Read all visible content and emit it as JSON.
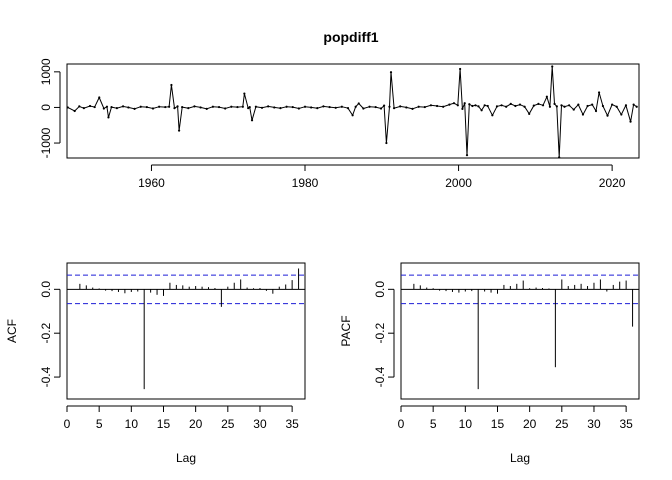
{
  "chart_data": [
    {
      "type": "line",
      "title": "popdiff1",
      "xlabel": "",
      "ylabel": "",
      "xlim": [
        1949,
        2023.5
      ],
      "ylim": [
        -1420,
        1220
      ],
      "x_ticks": [
        1960,
        1980,
        2000,
        2020
      ],
      "x_tick_labels": [
        "1960",
        "1980",
        "2000",
        "2020"
      ],
      "y_ticks": [
        -1000,
        0,
        1000
      ],
      "y_tick_labels": [
        "-1000",
        "0",
        "1000"
      ],
      "series": [
        {
          "x": [
            1949.1,
            1950.0,
            1950.6,
            1951.2,
            1952.0,
            1952.6,
            1953.2,
            1953.8,
            1954.2,
            1954.4,
            1954.8,
            1955.5,
            1956.3,
            1957.0,
            1957.8,
            1958.6,
            1959.4,
            1960.2,
            1961.0,
            1961.8,
            1962.3,
            1962.6,
            1963.0,
            1963.4,
            1963.6,
            1964.0,
            1964.8,
            1965.6,
            1966.4,
            1967.2,
            1968.0,
            1968.8,
            1969.6,
            1970.4,
            1971.2,
            1971.9,
            1972.1,
            1972.6,
            1972.8,
            1973.1,
            1973.6,
            1974.4,
            1975.2,
            1976.0,
            1976.8,
            1977.6,
            1978.4,
            1979.2,
            1980.0,
            1980.8,
            1981.6,
            1982.4,
            1983.2,
            1984.0,
            1984.8,
            1985.6,
            1986.2,
            1986.6,
            1987.0,
            1987.6,
            1988.4,
            1989.2,
            1989.9,
            1990.3,
            1990.6,
            1991.0,
            1991.2,
            1991.6,
            1992.4,
            1993.2,
            1994.0,
            1994.8,
            1995.6,
            1996.4,
            1997.2,
            1998.0,
            1998.8,
            1999.4,
            1999.9,
            2000.2,
            2000.5,
            2000.8,
            2001.1,
            2001.4,
            2001.8,
            2002.2,
            2002.6,
            2003.0,
            2003.4,
            2003.8,
            2004.4,
            2005.0,
            2005.6,
            2006.2,
            2006.8,
            2007.4,
            2008.0,
            2008.6,
            2009.2,
            2009.8,
            2010.4,
            2011.0,
            2011.5,
            2011.9,
            2012.2,
            2012.5,
            2012.8,
            2013.1,
            2013.4,
            2013.8,
            2014.4,
            2015.0,
            2015.6,
            2016.2,
            2016.8,
            2017.4,
            2017.9,
            2018.3,
            2018.8,
            2019.4,
            2020.0,
            2020.6,
            2021.2,
            2021.8,
            2022.4,
            2022.8,
            2023.2
          ],
          "y": [
            0,
            -100,
            30,
            -20,
            40,
            10,
            280,
            -30,
            20,
            -280,
            10,
            -20,
            30,
            0,
            -40,
            20,
            10,
            -30,
            20,
            10,
            20,
            630,
            -20,
            30,
            -650,
            10,
            -20,
            30,
            0,
            -40,
            20,
            10,
            -30,
            20,
            10,
            20,
            390,
            -20,
            10,
            -360,
            20,
            -10,
            30,
            0,
            -20,
            20,
            10,
            -30,
            20,
            0,
            -20,
            30,
            10,
            -10,
            20,
            -20,
            -220,
            20,
            110,
            -30,
            20,
            10,
            -30,
            50,
            -1000,
            20,
            990,
            -20,
            30,
            0,
            -40,
            20,
            10,
            60,
            40,
            20,
            80,
            120,
            60,
            1080,
            -40,
            120,
            -1340,
            90,
            40,
            60,
            30,
            -80,
            60,
            40,
            -220,
            30,
            60,
            20,
            100,
            40,
            80,
            20,
            -180,
            50,
            100,
            60,
            300,
            20,
            1150,
            100,
            30,
            -1400,
            60,
            20,
            60,
            -60,
            80,
            -200,
            40,
            80,
            -100,
            420,
            40,
            -230,
            80,
            20,
            -200,
            60,
            -400,
            80,
            20
          ]
        }
      ]
    },
    {
      "type": "bar",
      "title": "",
      "xlabel": "Lag",
      "ylabel": "ACF",
      "xlim": [
        0,
        37
      ],
      "ylim": [
        -0.5,
        0.12
      ],
      "x_ticks": [
        0,
        5,
        10,
        15,
        20,
        25,
        30,
        35
      ],
      "x_tick_labels": [
        "0",
        "5",
        "10",
        "15",
        "20",
        "25",
        "30",
        "35"
      ],
      "y_ticks": [
        -0.4,
        -0.2,
        0.0
      ],
      "y_tick_labels": [
        "-0.4",
        "-0.2",
        "0.0"
      ],
      "confidence_band": [
        -0.065,
        0.065
      ],
      "lags": [
        2,
        3,
        4,
        5,
        6,
        7,
        8,
        9,
        10,
        11,
        12,
        13,
        14,
        15,
        16,
        17,
        18,
        19,
        20,
        21,
        22,
        23,
        24,
        25,
        26,
        27,
        28,
        29,
        30,
        31,
        32,
        33,
        34,
        35,
        36
      ],
      "values": [
        0.025,
        0.018,
        0.008,
        0.004,
        -0.006,
        -0.008,
        -0.012,
        -0.018,
        -0.012,
        -0.01,
        -0.455,
        -0.015,
        -0.025,
        -0.03,
        0.03,
        0.02,
        0.018,
        0.012,
        0.015,
        0.012,
        0.01,
        0.006,
        -0.08,
        0.012,
        0.03,
        0.045,
        0.008,
        0.005,
        0.006,
        -0.007,
        -0.02,
        0.012,
        0.022,
        0.042,
        0.095
      ]
    },
    {
      "type": "bar",
      "title": "",
      "xlabel": "Lag",
      "ylabel": "PACF",
      "xlim": [
        0,
        37
      ],
      "ylim": [
        -0.5,
        0.12
      ],
      "x_ticks": [
        0,
        5,
        10,
        15,
        20,
        25,
        30,
        35
      ],
      "x_tick_labels": [
        "0",
        "5",
        "10",
        "15",
        "20",
        "25",
        "30",
        "35"
      ],
      "y_ticks": [
        -0.4,
        -0.2,
        0.0
      ],
      "y_tick_labels": [
        "-0.4",
        "-0.2",
        "0.0"
      ],
      "confidence_band": [
        -0.065,
        0.065
      ],
      "lags": [
        2,
        3,
        4,
        5,
        6,
        7,
        8,
        9,
        10,
        11,
        12,
        13,
        14,
        15,
        16,
        17,
        18,
        19,
        20,
        21,
        22,
        23,
        24,
        25,
        26,
        27,
        28,
        29,
        30,
        31,
        32,
        33,
        34,
        35,
        36
      ],
      "values": [
        0.025,
        0.018,
        0.008,
        0.005,
        -0.006,
        -0.008,
        -0.012,
        -0.015,
        -0.01,
        -0.008,
        -0.455,
        -0.01,
        -0.015,
        -0.02,
        0.02,
        0.015,
        0.025,
        0.04,
        0.005,
        0.008,
        0.006,
        0.004,
        -0.355,
        0.045,
        0.015,
        0.02,
        0.025,
        0.015,
        0.03,
        0.045,
        -0.01,
        0.02,
        0.035,
        0.04,
        -0.17
      ]
    }
  ]
}
